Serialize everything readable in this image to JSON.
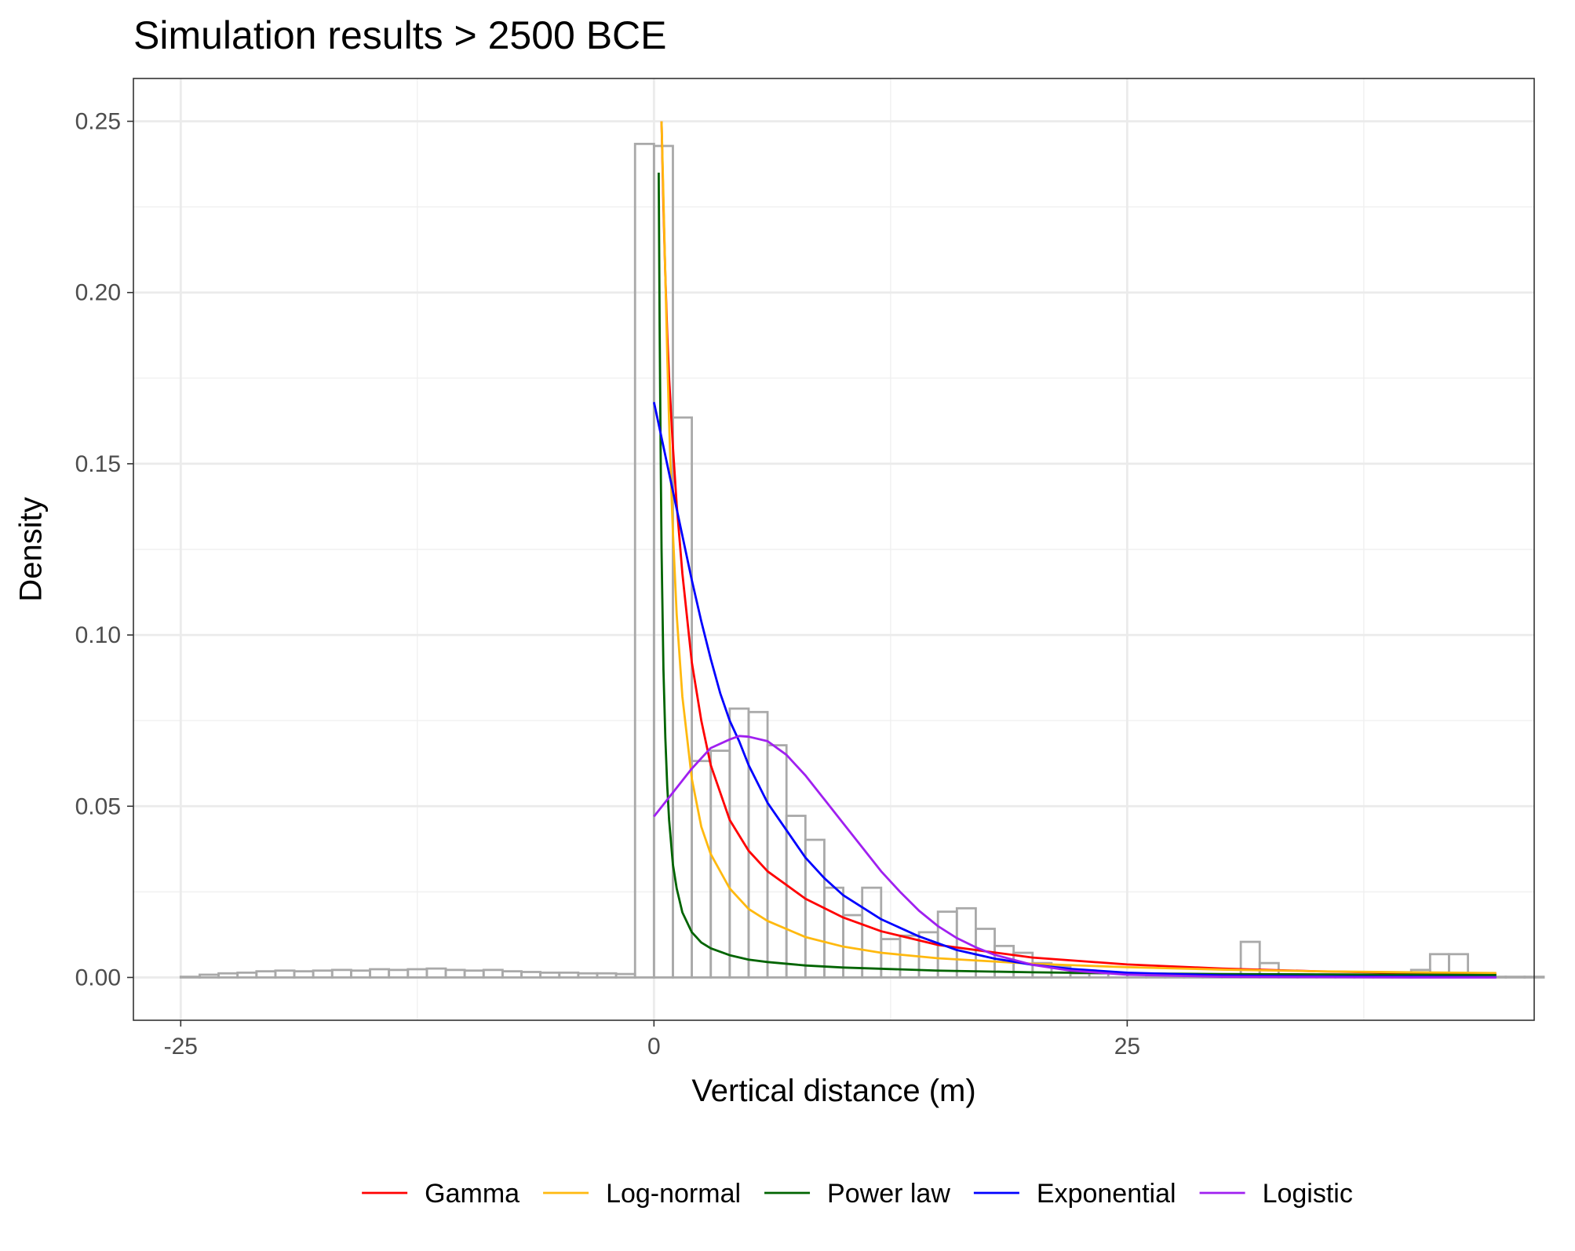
{
  "chart_data": {
    "type": "histogram+line",
    "title": "Simulation results > 2500 BCE",
    "xlabel": "Vertical distance (m)",
    "ylabel": "Density",
    "xlim": [
      -27.5,
      46.5
    ],
    "ylim": [
      -0.0125,
      0.2625
    ],
    "x_ticks": [
      -25,
      0,
      25
    ],
    "x_tick_labels": [
      "-25",
      "0",
      "25"
    ],
    "y_ticks": [
      0,
      0.05,
      0.1,
      0.15,
      0.2,
      0.25
    ],
    "y_tick_labels": [
      "0.00",
      "0.05",
      "0.10",
      "0.15",
      "0.20",
      "0.25"
    ],
    "grid": true,
    "legend_position": "bottom",
    "histogram": {
      "bin_width": 1,
      "bin_start": -25,
      "color": "#a9a9a9",
      "values": [
        0.0002,
        0.0008,
        0.0012,
        0.0014,
        0.0018,
        0.002,
        0.0018,
        0.002,
        0.0022,
        0.002,
        0.0024,
        0.0022,
        0.0024,
        0.0026,
        0.0022,
        0.002,
        0.0022,
        0.0018,
        0.0016,
        0.0014,
        0.0014,
        0.0012,
        0.0012,
        0.001,
        0.2434,
        0.2428,
        0.1635,
        0.0632,
        0.0662,
        0.0785,
        0.0775,
        0.0678,
        0.0472,
        0.0402,
        0.0262,
        0.0182,
        0.0262,
        0.0112,
        0.0122,
        0.0132,
        0.0192,
        0.0202,
        0.0142,
        0.0092,
        0.0072,
        0.0042,
        0.0032,
        0.0012,
        0.0012,
        0.0012,
        0.0008,
        0.0005,
        0.0004,
        0.0004,
        0.0004,
        0.0004,
        0.0104,
        0.0042,
        0.0002,
        0.0002,
        0.0002,
        0.0002,
        0.0002,
        0.0002,
        0.0002,
        0.0022,
        0.0068,
        0.0068,
        0.0002,
        0.0002,
        0.0002,
        0.0002
      ]
    },
    "series": [
      {
        "name": "Gamma",
        "color": "#ff0000",
        "x": [
          0.4,
          0.5,
          0.6,
          0.7,
          0.8,
          1.0,
          1.2,
          1.5,
          2.0,
          2.5,
          3.0,
          4.0,
          5.0,
          6.0,
          7.0,
          8.0,
          10.0,
          12.0,
          15.0,
          20.0,
          25.0,
          30.0,
          35.0,
          40.0,
          44.5
        ],
        "y": [
          0.25,
          0.225,
          0.205,
          0.188,
          0.175,
          0.155,
          0.138,
          0.118,
          0.092,
          0.075,
          0.062,
          0.046,
          0.037,
          0.031,
          0.027,
          0.023,
          0.0175,
          0.0135,
          0.0095,
          0.0058,
          0.0038,
          0.0026,
          0.0018,
          0.0013,
          0.001
        ]
      },
      {
        "name": "Log-normal",
        "color": "#ffb90f",
        "x": [
          0.4,
          0.5,
          0.6,
          0.7,
          0.8,
          0.9,
          1.0,
          1.2,
          1.5,
          2.0,
          2.5,
          3.0,
          4.0,
          5.0,
          6.0,
          8.0,
          10.0,
          12.0,
          15.0,
          20.0,
          25.0,
          30.0,
          35.0,
          40.0,
          44.5
        ],
        "y": [
          0.25,
          0.228,
          0.205,
          0.182,
          0.162,
          0.145,
          0.13,
          0.106,
          0.082,
          0.058,
          0.044,
          0.036,
          0.026,
          0.02,
          0.0165,
          0.0118,
          0.009,
          0.0072,
          0.0056,
          0.004,
          0.003,
          0.0023,
          0.0018,
          0.0015,
          0.0013
        ]
      },
      {
        "name": "Power law",
        "color": "#006400",
        "x": [
          0.25,
          0.3,
          0.35,
          0.4,
          0.5,
          0.6,
          0.7,
          0.8,
          1.0,
          1.2,
          1.5,
          2.0,
          2.5,
          3.0,
          4.0,
          5.0,
          6.0,
          8.0,
          10.0,
          15.0,
          20.0,
          25.0,
          30.0,
          35.0,
          40.0,
          44.5
        ],
        "y": [
          0.235,
          0.19,
          0.155,
          0.125,
          0.09,
          0.07,
          0.056,
          0.046,
          0.033,
          0.026,
          0.019,
          0.0132,
          0.0102,
          0.0085,
          0.0065,
          0.0052,
          0.0045,
          0.0035,
          0.0029,
          0.002,
          0.0015,
          0.0012,
          0.001,
          0.0009,
          0.0008,
          0.0007
        ]
      },
      {
        "name": "Exponential",
        "color": "#0000ff",
        "x": [
          0.0,
          0.5,
          1.0,
          1.5,
          2.0,
          2.5,
          3.0,
          3.5,
          4.0,
          4.5,
          5.0,
          6.0,
          7.0,
          8.0,
          9.0,
          10.0,
          12.0,
          14.0,
          16.0,
          18.0,
          20.0,
          22.0,
          25.0,
          30.0,
          35.0,
          40.0,
          44.5
        ],
        "y": [
          0.168,
          0.155,
          0.142,
          0.129,
          0.116,
          0.104,
          0.093,
          0.083,
          0.075,
          0.069,
          0.062,
          0.051,
          0.043,
          0.035,
          0.029,
          0.024,
          0.017,
          0.012,
          0.008,
          0.0055,
          0.0037,
          0.0025,
          0.0014,
          0.0006,
          0.0003,
          0.0002,
          0.0001
        ]
      },
      {
        "name": "Logistic",
        "color": "#a020f0",
        "x": [
          0.0,
          1.0,
          2.0,
          3.0,
          4.0,
          4.5,
          5.0,
          6.0,
          7.0,
          8.0,
          9.0,
          10.0,
          11.0,
          12.0,
          13.0,
          14.0,
          15.0,
          16.0,
          17.0,
          18.0,
          20.0,
          22.0,
          25.0,
          30.0,
          35.0,
          40.0,
          44.5
        ],
        "y": [
          0.047,
          0.054,
          0.061,
          0.067,
          0.0695,
          0.0705,
          0.0703,
          0.069,
          0.065,
          0.059,
          0.052,
          0.045,
          0.038,
          0.031,
          0.025,
          0.0195,
          0.015,
          0.0115,
          0.0088,
          0.0066,
          0.0037,
          0.002,
          0.0008,
          0.0002,
          0.0001,
          0.0,
          0.0
        ]
      }
    ]
  }
}
